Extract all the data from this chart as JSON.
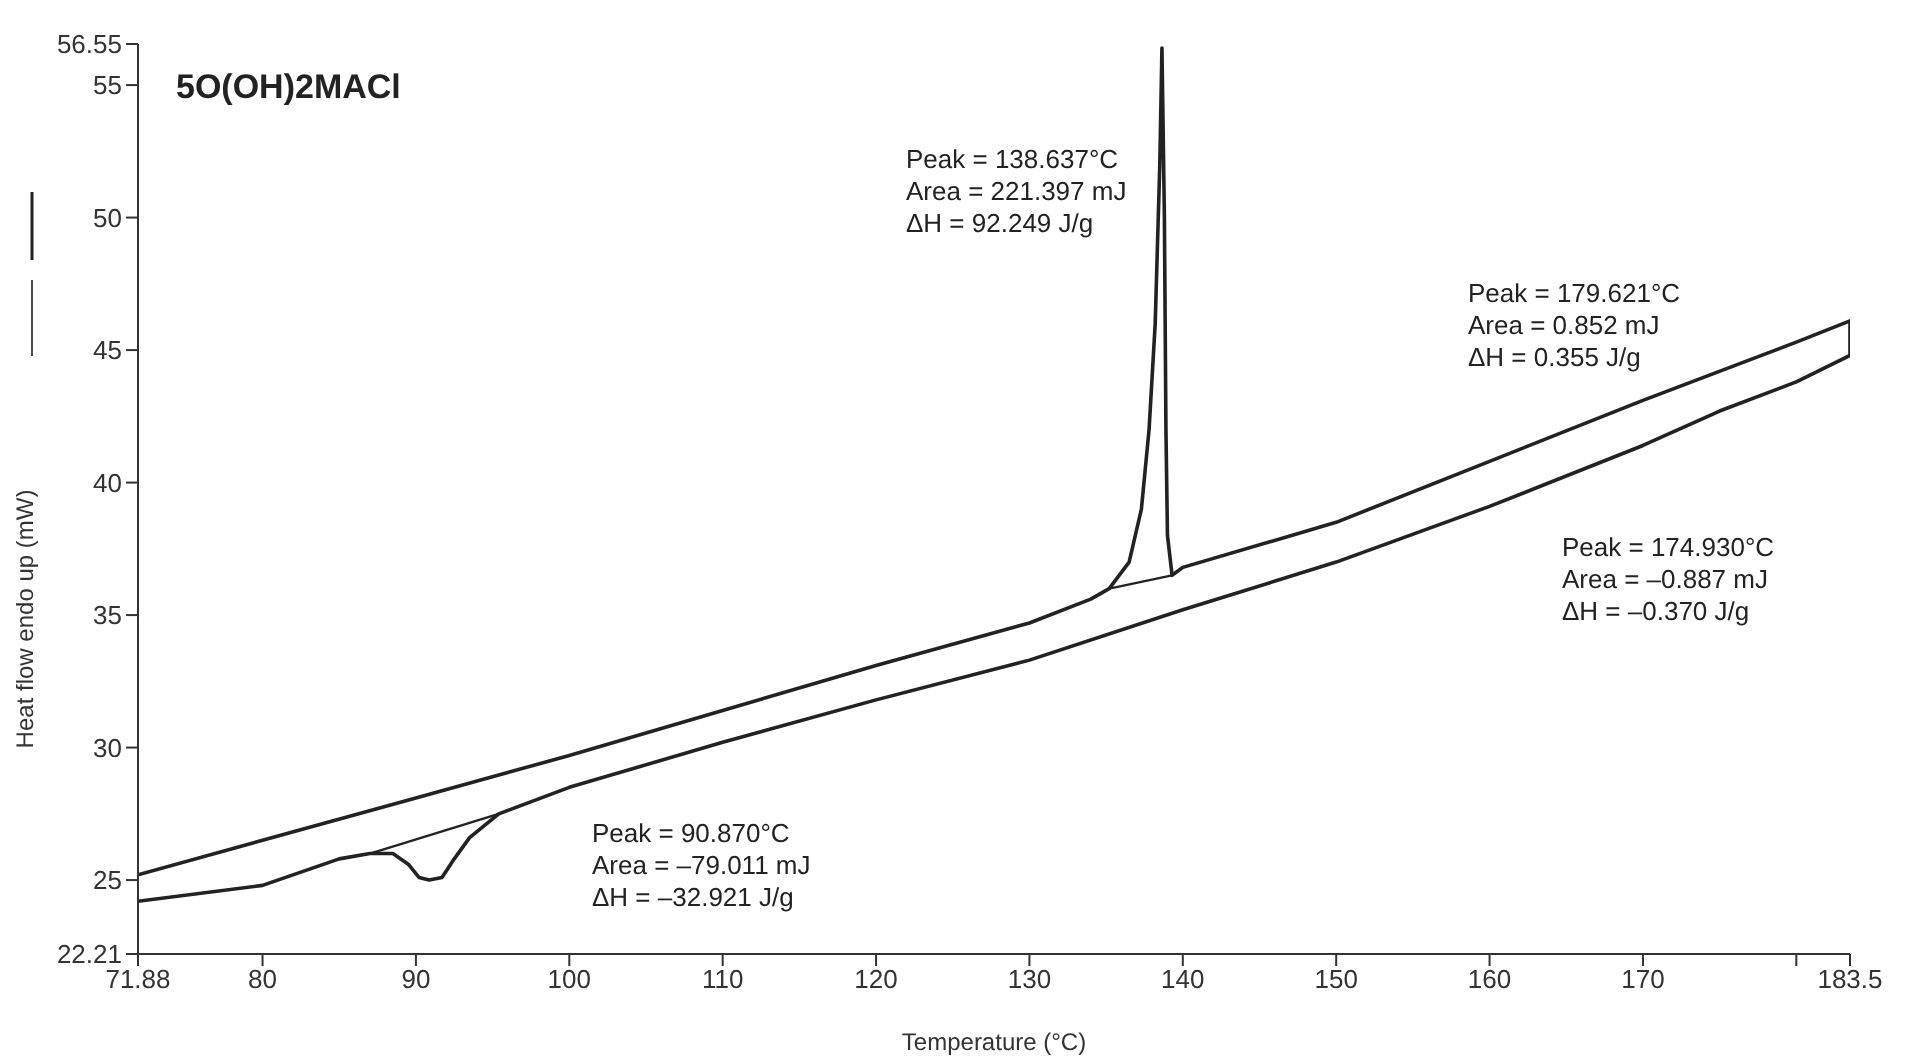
{
  "chart_data": {
    "type": "line",
    "title": "5O(OH)2MACl",
    "xlabel": "Temperature (°C)",
    "ylabel": "Heat flow endo up (mW)",
    "xlim": [
      71.88,
      183.5
    ],
    "xticks": [
      71.88,
      80,
      90,
      100,
      110,
      120,
      130,
      140,
      150,
      160,
      170,
      {
        "value": 180,
        "label": null
      },
      183.5
    ],
    "ylim": [
      22.21,
      56.55
    ],
    "yticks": [
      22.21,
      25,
      30,
      35,
      40,
      45,
      50,
      55,
      56.55
    ],
    "marker": "none",
    "line_style": "solid",
    "series": [
      {
        "color": "#222222",
        "x": [
          71.88,
          80,
          90,
          100,
          110,
          120,
          130,
          134,
          135.2,
          136.5,
          137.3,
          137.8,
          138.2,
          138.5,
          138.64,
          138.8,
          138.9,
          139.0,
          139.3,
          140,
          150,
          160,
          170,
          180,
          183.5,
          183.5
        ],
        "values": [
          25.2,
          26.5,
          28.1,
          29.7,
          31.4,
          33.1,
          34.7,
          35.6,
          36.0,
          37.0,
          39.0,
          42.0,
          46.0,
          52.0,
          56.4,
          50.0,
          42.0,
          38.0,
          36.5,
          36.8,
          38.5,
          40.8,
          43.1,
          45.3,
          46.1,
          44.8
        ]
      },
      {
        "color": "#222222",
        "x": [
          71.88,
          80,
          85,
          87,
          88.5,
          89.5,
          90.2,
          90.87,
          91.7,
          92.5,
          93.5,
          95.4,
          100,
          110,
          120,
          130,
          140,
          150,
          160,
          170,
          175,
          180,
          183.5
        ],
        "values": [
          24.2,
          24.8,
          25.8,
          26.0,
          26.0,
          25.6,
          25.1,
          25.0,
          25.1,
          25.8,
          26.6,
          27.5,
          28.5,
          30.2,
          31.8,
          33.3,
          35.2,
          37.0,
          39.1,
          41.4,
          42.7,
          43.8,
          44.8
        ]
      },
      {
        "color": "#222222",
        "x": [
          87,
          95.4
        ],
        "values": [
          26.0,
          27.5
        ]
      },
      {
        "color": "#222222",
        "x": [
          135.2,
          139.3
        ],
        "values": [
          36.0,
          36.5
        ]
      }
    ],
    "annotations": [
      "Peak = 138.637°C\nArea = 221.397 mJ\nΔH = 92.249 J/g",
      "Peak = 179.621°C\nArea = 0.852 mJ\nΔH = 0.355 J/g",
      "Peak = 174.930°C\nArea = –0.887 mJ\nΔH = –0.370 J/g",
      "Peak = 90.870°C\nArea = –79.011 mJ\nΔH = –32.921 J/g"
    ]
  }
}
